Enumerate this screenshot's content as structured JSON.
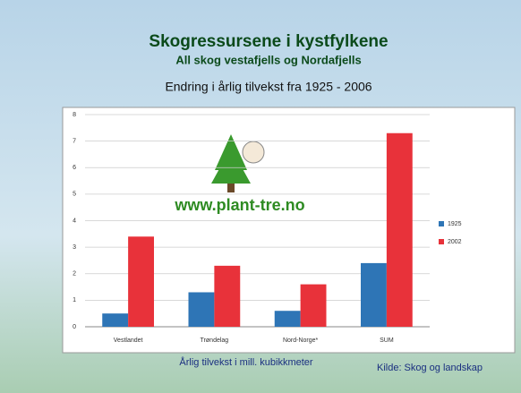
{
  "chart_data": {
    "type": "bar",
    "title": "Skogressursene i kystfylkene",
    "subtitle": "All skog vestafjells og Nordafjells",
    "chart_title": "Endring i årlig tilvekst fra 1925 - 2006",
    "xlabel": "Årlig tilvekst i mill. kubikkmeter",
    "source": "Kilde: Skog og landskap",
    "logo_text": "www.plant-tre.no",
    "categories": [
      "Vestlandet",
      "Trøndelag",
      "Nord-Norge*",
      "SUM"
    ],
    "series": [
      {
        "name": "1925",
        "color": "#2e75b6",
        "values": [
          0.5,
          1.3,
          0.6,
          2.4
        ]
      },
      {
        "name": "2002",
        "color": "#e8323a",
        "values": [
          3.4,
          2.3,
          1.6,
          7.3
        ]
      }
    ],
    "ylim": [
      0,
      8
    ],
    "yticks": [
      0,
      1,
      2,
      3,
      4,
      5,
      6,
      7,
      8
    ],
    "grid": true
  }
}
